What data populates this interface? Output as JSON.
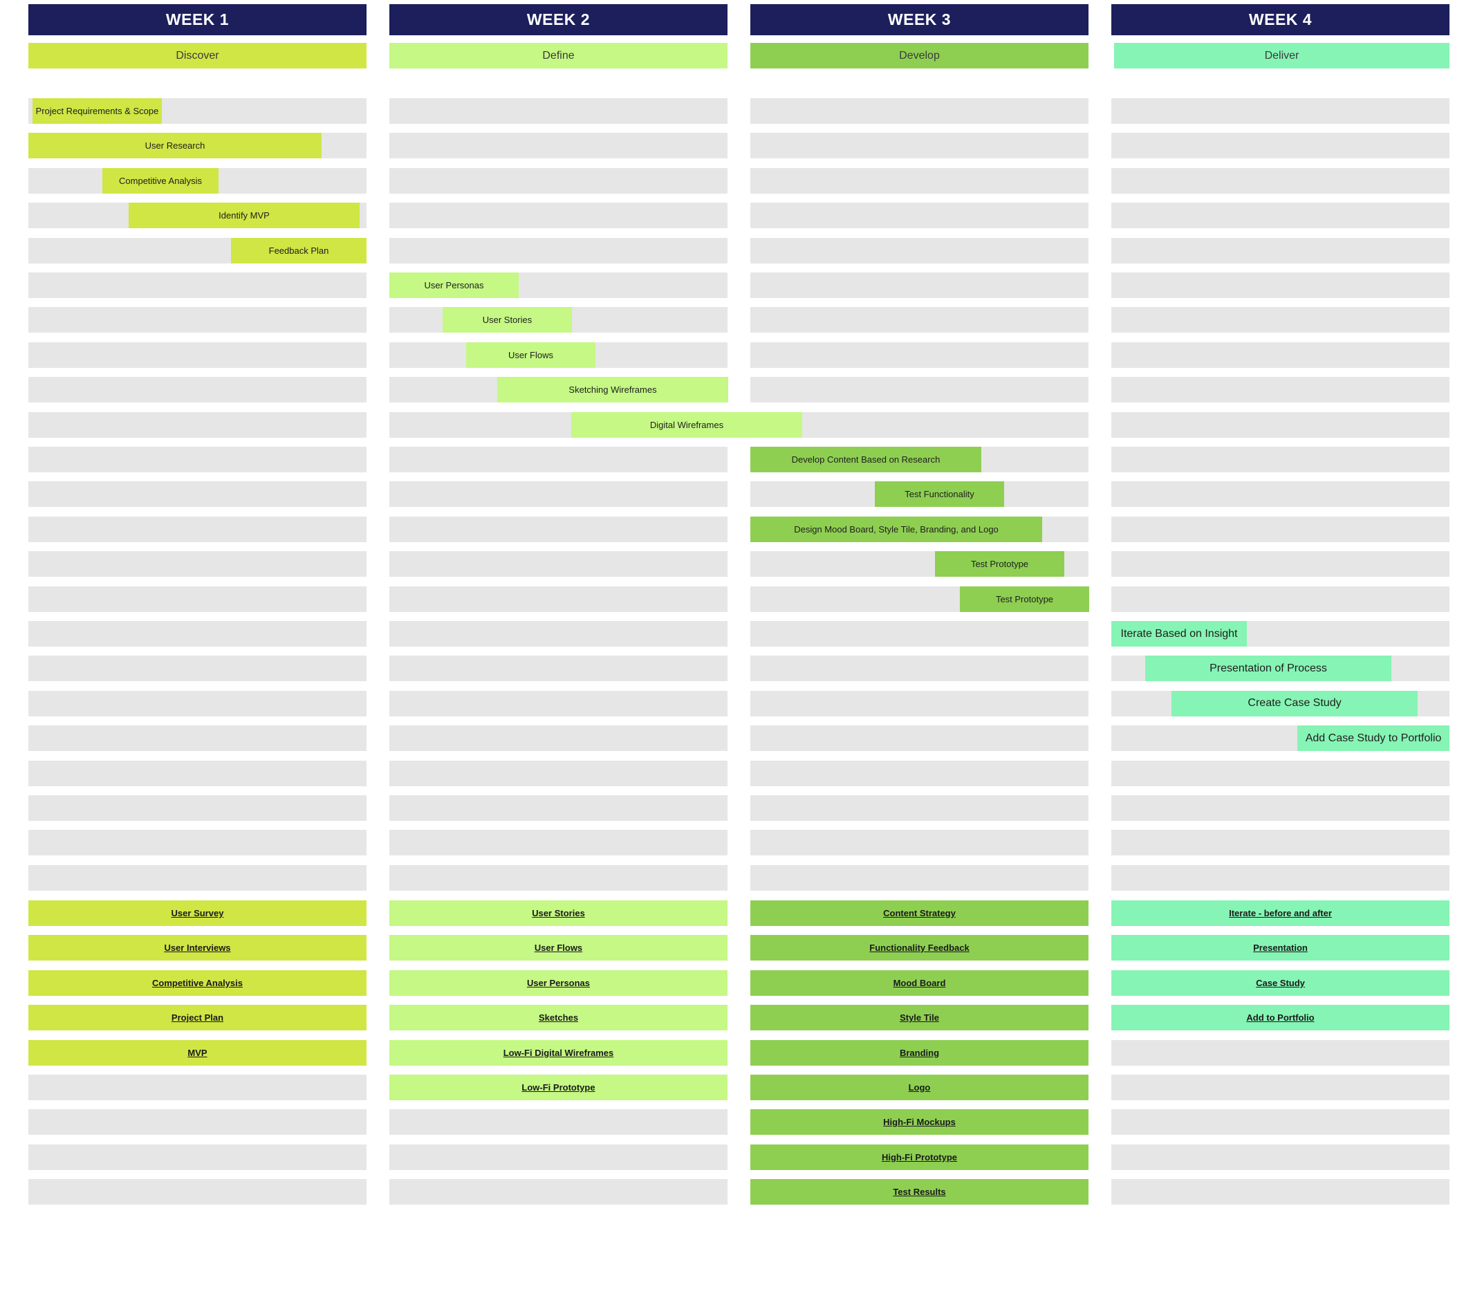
{
  "colors": {
    "header": "#1c1f5c",
    "track": "#e6e6e6",
    "week1": "#cfe645",
    "week2": "#c5f884",
    "week3": "#8ecf52",
    "week4": "#86f4b4"
  },
  "weeks": [
    {
      "title": "WEEK 1",
      "phase": "Discover",
      "deliverables": [
        "User Survey",
        "User Interviews",
        "Competitive Analysis",
        "Project Plan",
        "MVP"
      ]
    },
    {
      "title": "WEEK 2",
      "phase": "Define",
      "deliverables": [
        "User Stories",
        "User Flows",
        "User Personas",
        "Sketches",
        "Low-Fi Digital Wireframes",
        "Low-Fi Prototype"
      ]
    },
    {
      "title": "WEEK 3",
      "phase": "Develop",
      "deliverables": [
        "Content Strategy",
        "Functionality Feedback",
        "Mood Board",
        "Style Tile",
        "Branding",
        "Logo",
        "High-Fi Mockups",
        "High-Fi Prototype",
        "Test Results"
      ]
    },
    {
      "title": "WEEK 4",
      "phase": "Deliver",
      "deliverables": [
        "Iterate - before and after",
        "Presentation",
        "Case Study",
        "Add to Portfolio"
      ]
    }
  ],
  "tasks": [
    {
      "label": "Project Requirements & Scope",
      "week": 1
    },
    {
      "label": "User Research",
      "week": 1
    },
    {
      "label": "Competitive Analysis",
      "week": 1
    },
    {
      "label": "Identify MVP",
      "week": 1
    },
    {
      "label": "Feedback Plan",
      "week": 1
    },
    {
      "label": "User Personas",
      "week": 2
    },
    {
      "label": "User Stories",
      "week": 2
    },
    {
      "label": "User Flows",
      "week": 2
    },
    {
      "label": "Sketching Wireframes",
      "week": 2
    },
    {
      "label": "Digital Wireframes",
      "week": 2
    },
    {
      "label": "Develop Content Based on Research",
      "week": 3
    },
    {
      "label": "Test Functionality",
      "week": 3
    },
    {
      "label": "Design Mood Board, Style Tile, Branding, and Logo",
      "week": 3
    },
    {
      "label": "Test Prototype",
      "week": 3
    },
    {
      "label": "Test Prototype",
      "week": 3
    },
    {
      "label": "Iterate Based on Insight",
      "week": 4
    },
    {
      "label": "Presentation of Process",
      "week": 4
    },
    {
      "label": "Create Case Study",
      "week": 4
    },
    {
      "label": "Add Case Study to Portfolio",
      "week": 4
    }
  ]
}
